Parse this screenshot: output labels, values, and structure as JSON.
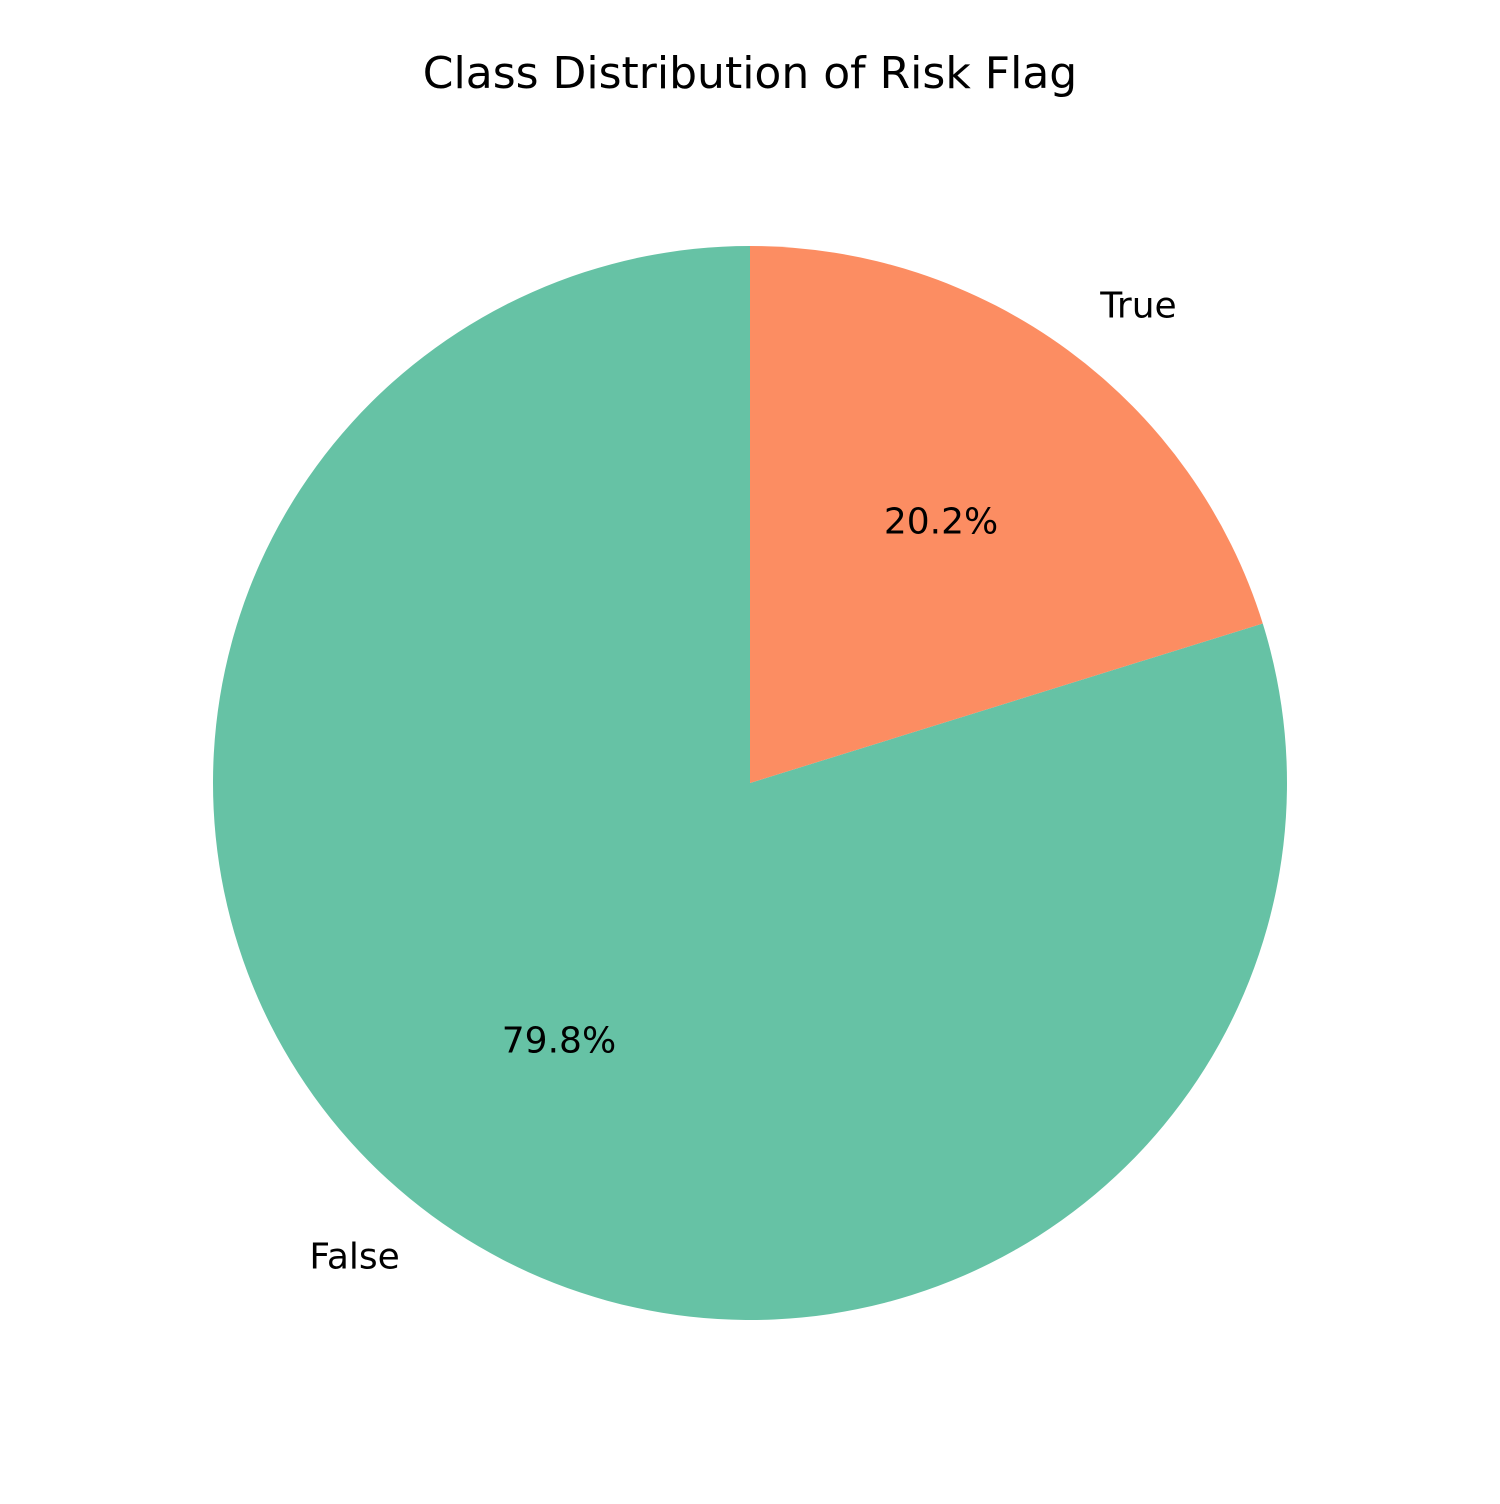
{
  "chart_data": {
    "type": "pie",
    "title": "Class Distribution of Risk Flag",
    "categories": [
      "False",
      "True"
    ],
    "values": [
      79.8,
      20.2
    ],
    "labels": [
      "79.8%",
      "20.2%"
    ],
    "colors": [
      "#66c2a5",
      "#fc8d62"
    ],
    "start_angle_deg": 90,
    "direction": "counterclockwise"
  }
}
